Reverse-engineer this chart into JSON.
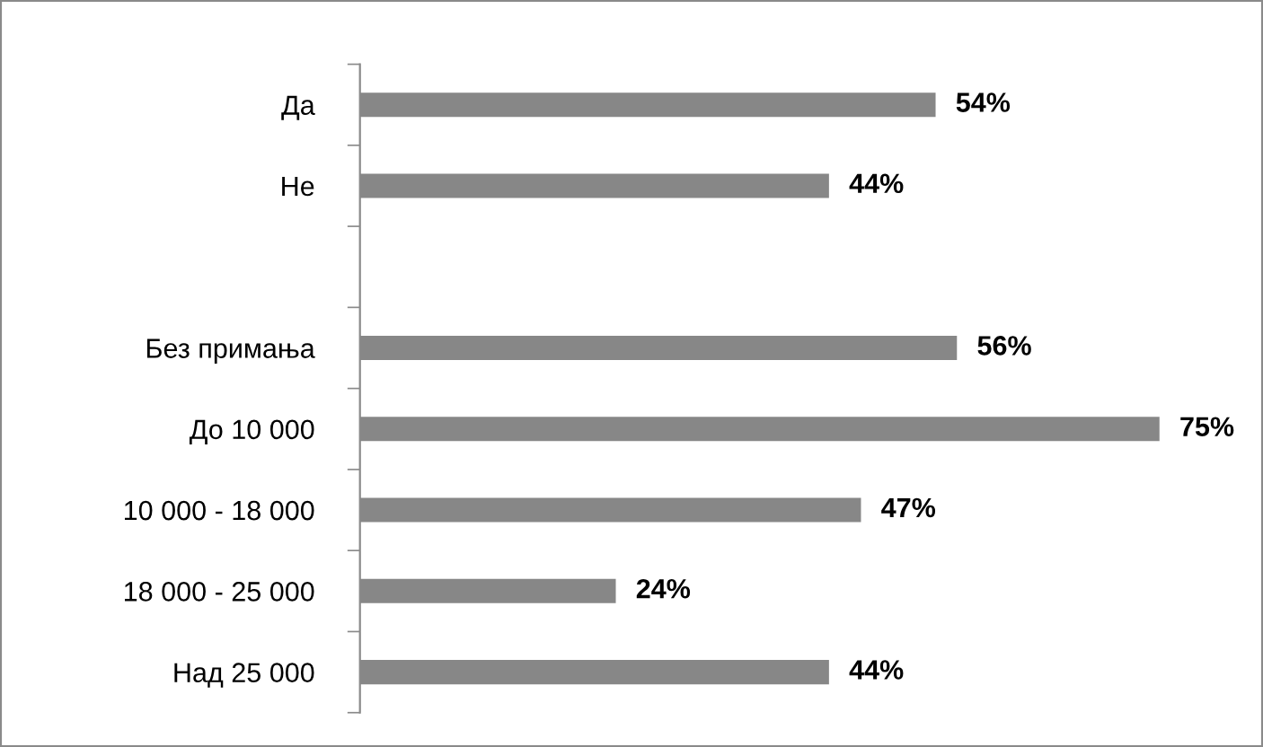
{
  "chart_data": {
    "type": "bar",
    "orientation": "horizontal",
    "categories": [
      "Да",
      "Не",
      null,
      "Без примања",
      "До 10 000",
      "10 000 - 18 000",
      "18 000 - 25 000",
      "Над 25 000"
    ],
    "values": [
      54,
      44,
      null,
      56,
      75,
      47,
      24,
      44
    ],
    "value_labels": [
      "54%",
      "44%",
      null,
      "56%",
      "75%",
      "47%",
      "24%",
      "44%"
    ],
    "color": "#878787",
    "grid": false,
    "legend": false
  }
}
